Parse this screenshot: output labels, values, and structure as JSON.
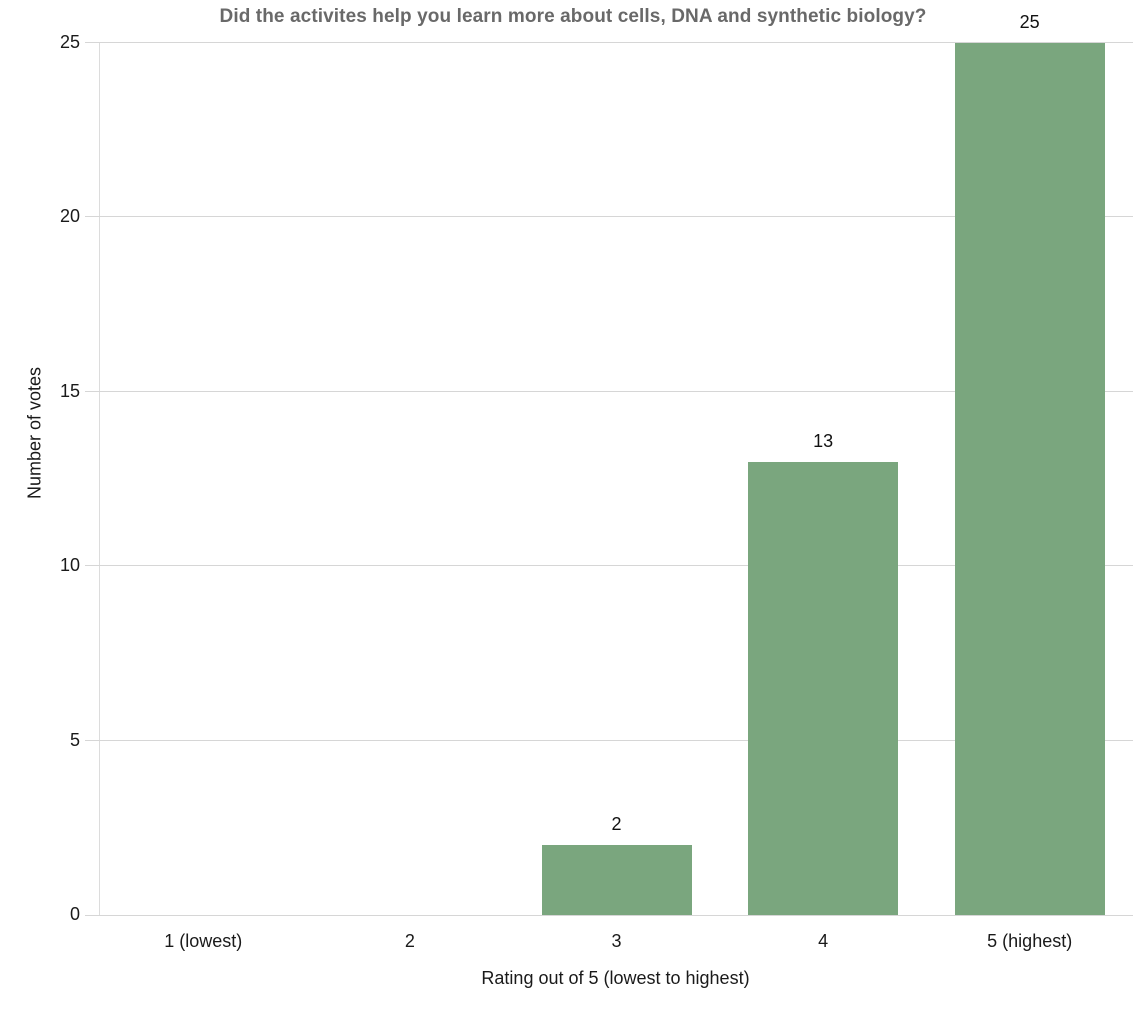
{
  "chart_data": {
    "type": "bar",
    "title": "Did the activites help you learn more about cells, DNA and synthetic biology?",
    "xlabel": "Rating out of 5 (lowest to highest)",
    "ylabel": "Number of votes",
    "categories": [
      "1 (lowest)",
      "2",
      "3",
      "4",
      "5 (highest)"
    ],
    "values": [
      0,
      0,
      2,
      13,
      25
    ],
    "ylim": [
      0,
      25
    ],
    "yticks": [
      0,
      5,
      10,
      15,
      20,
      25
    ],
    "grid": "horizontal",
    "legend_position": "none",
    "value_labels_shown": [
      "2",
      "13",
      "25"
    ]
  },
  "colors": {
    "bar": "#7aa67e",
    "gridline": "#d6d6d6",
    "axis_spine": "#dcdcdc",
    "title_text": "#696969",
    "tick_text": "#1a1a1a",
    "background": "#ffffff"
  }
}
